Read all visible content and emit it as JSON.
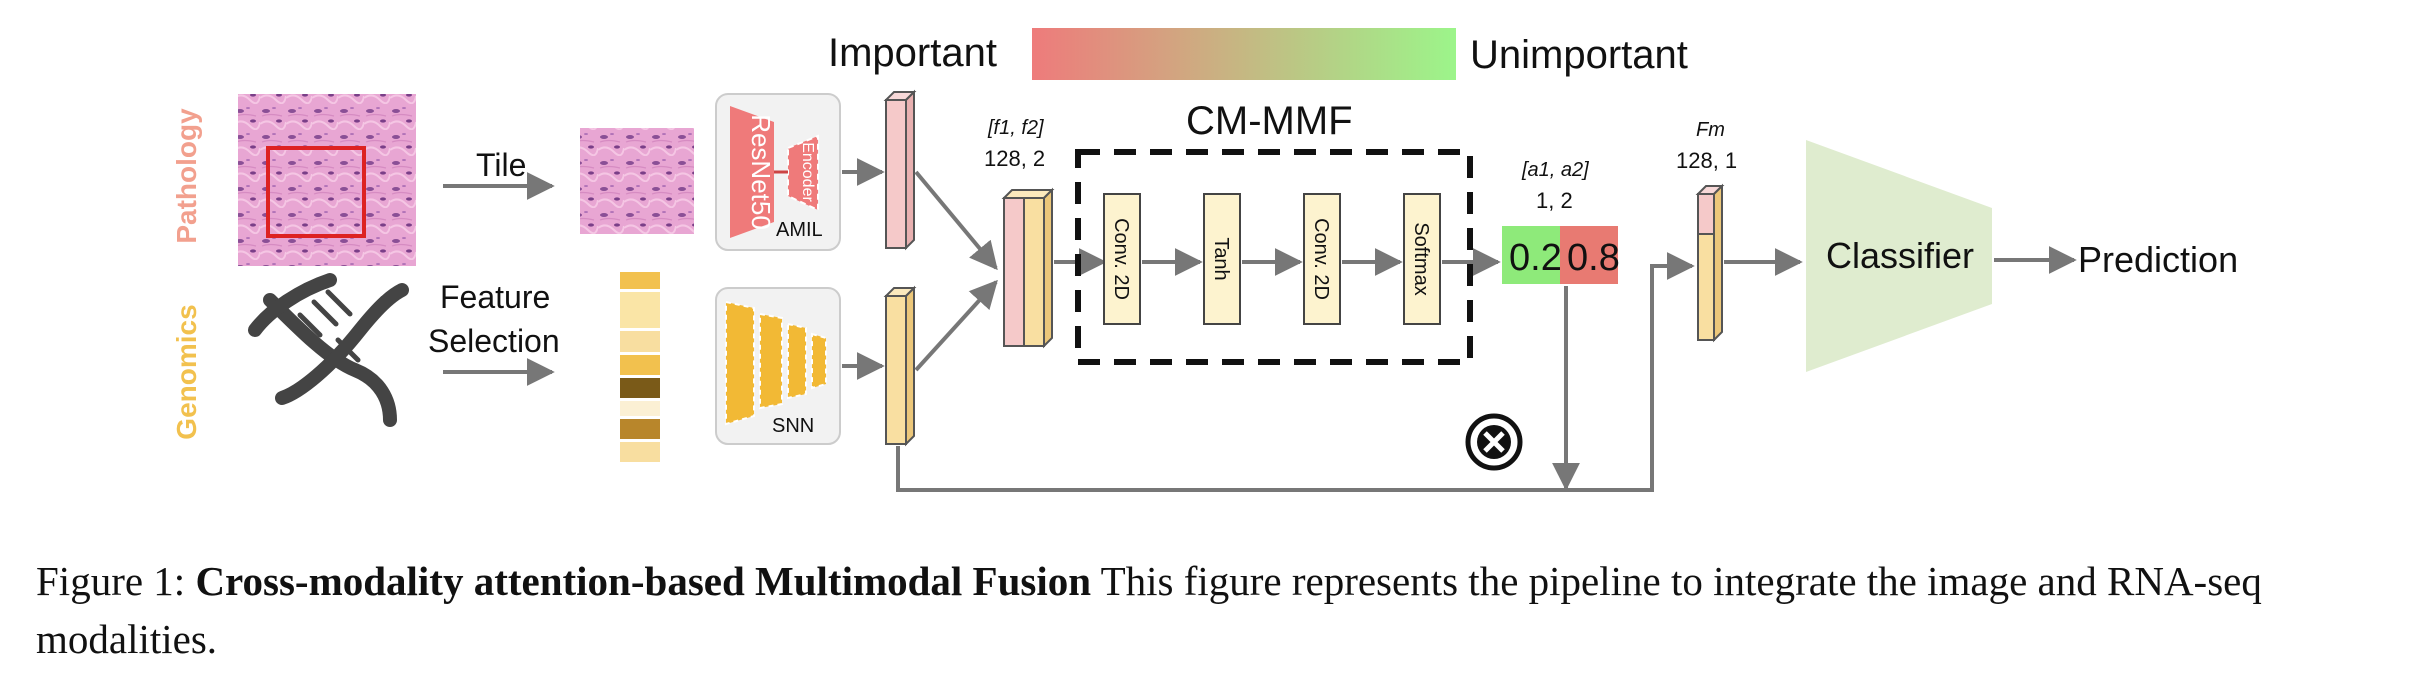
{
  "legend": {
    "left_label": "Important",
    "right_label": "Unimportant",
    "gradient_start": "#ee7b7b",
    "gradient_end": "#9cf58a"
  },
  "modalities": {
    "pathology": "Pathology",
    "genomics": "Genomics",
    "pathology_color": "#f2a08e",
    "genomics_color": "#f2c14e"
  },
  "arrows": {
    "tile": "Tile",
    "feature_selection_1": "Feature",
    "feature_selection_2": "Selection"
  },
  "encoders": {
    "resnet": "ResNet50",
    "encoder": "Encoder",
    "amil": "AMIL",
    "snn": "SNN"
  },
  "concat": {
    "label": "[f1, f2]",
    "dims": "128, 2"
  },
  "cm_mmf": {
    "title": "CM-MMF",
    "blocks": [
      "Conv. 2D",
      "Tanh",
      "Conv. 2D",
      "Softmax"
    ]
  },
  "attention": {
    "label": "[a1, a2]",
    "dims": "1, 2",
    "a1_value": "0.2",
    "a2_value": "0.8",
    "a1_color": "#8eea7a",
    "a2_color": "#e87a72"
  },
  "fused": {
    "label": "Fm",
    "dims": "128, 1"
  },
  "classifier": {
    "label": "Classifier",
    "output": "Prediction",
    "color": "#dfeccf"
  },
  "caption": {
    "prefix": "Figure 1: ",
    "bold": "Cross-modality attention-based Multimodal Fusion",
    "text": " This figure represents the pipeline to integrate the image and RNA-seq modalities."
  }
}
